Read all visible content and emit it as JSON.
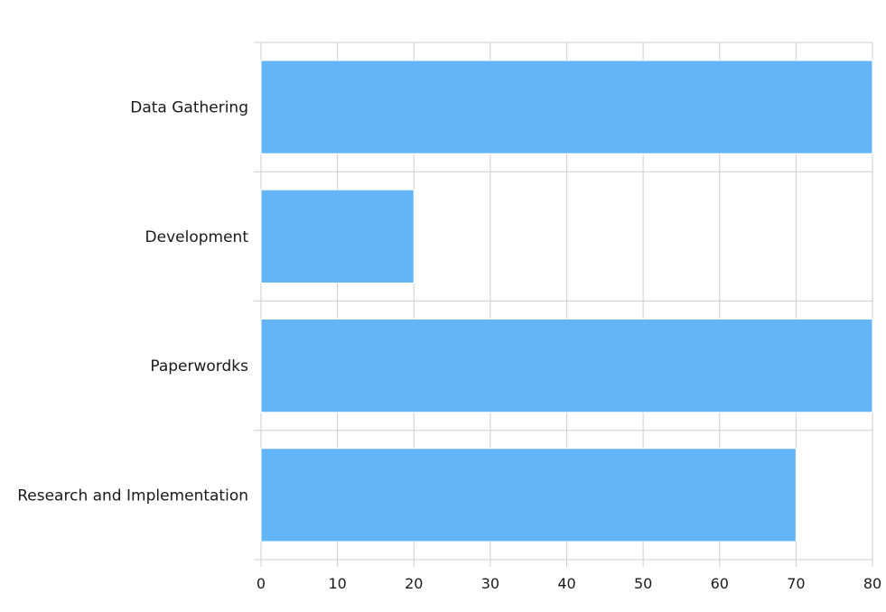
{
  "chart_data": {
    "type": "bar",
    "orientation": "horizontal",
    "categories": [
      "Data Gathering",
      "Development",
      "Paperwordks",
      "Research and Implementation"
    ],
    "values": [
      80,
      20,
      80,
      70
    ],
    "xlim": [
      0,
      80
    ],
    "xticks": [
      0,
      10,
      20,
      30,
      40,
      50,
      60,
      70,
      80
    ],
    "title": "",
    "xlabel": "",
    "ylabel": "",
    "grid": true,
    "legend": "none",
    "bar_color": "#64b5f6",
    "grid_color": "#cfcfcf"
  }
}
